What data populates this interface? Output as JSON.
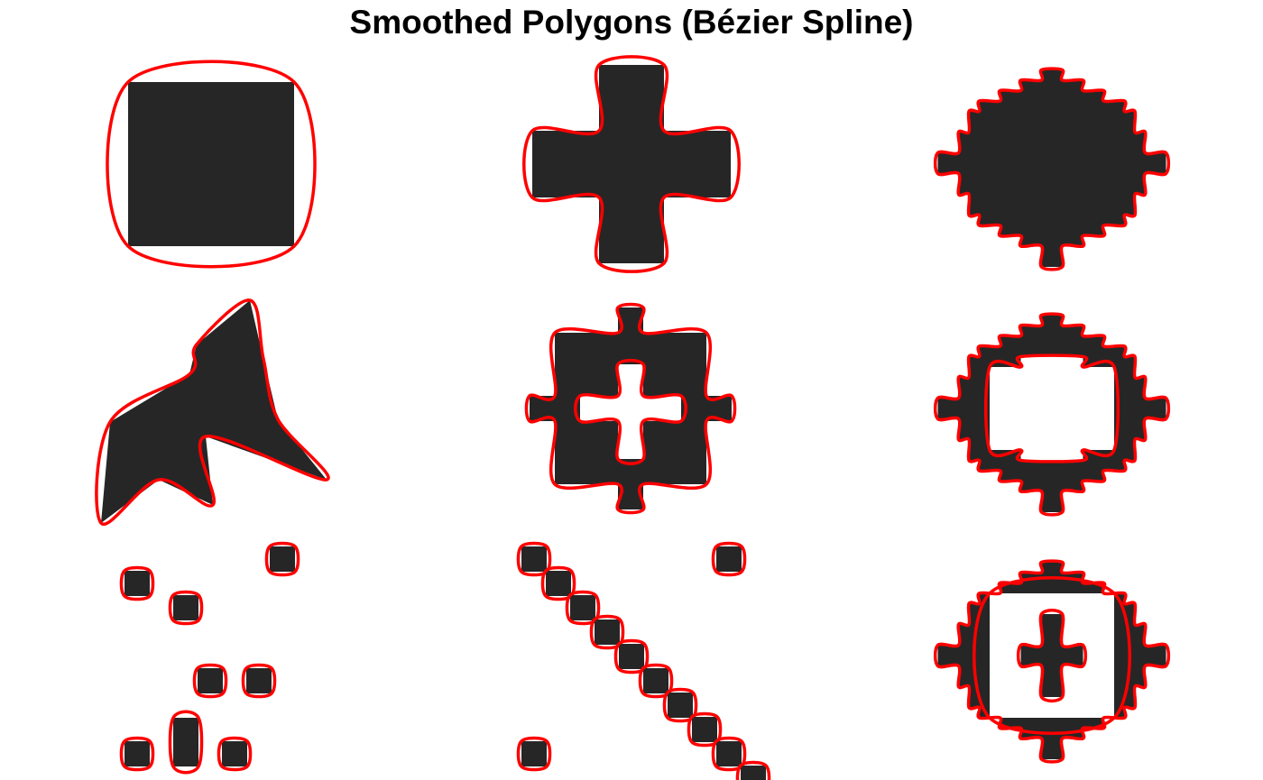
{
  "title": "Smoothed Polygons (Bézier Spline)",
  "style": {
    "fill_color": "#262626",
    "outline_color": "#ff0000",
    "background": "#ffffff"
  },
  "panels": [
    {
      "name": "square",
      "shape": "square"
    },
    {
      "name": "cross",
      "shape": "cross"
    },
    {
      "name": "notched-octagon",
      "shape": "notched octagon"
    },
    {
      "name": "concave-polygon",
      "shape": "irregular concave polygon"
    },
    {
      "name": "frame-with-cross-hole",
      "shape": "notched frame with cross-shaped hole"
    },
    {
      "name": "frame-with-square-hole",
      "shape": "notched frame with square hole"
    },
    {
      "name": "scattered-squares",
      "shape": "scattered small squares"
    },
    {
      "name": "diagonal-squares",
      "shape": "diagonal chain of small squares"
    },
    {
      "name": "frame-with-cross-island",
      "shape": "notched frame with cross island"
    }
  ]
}
